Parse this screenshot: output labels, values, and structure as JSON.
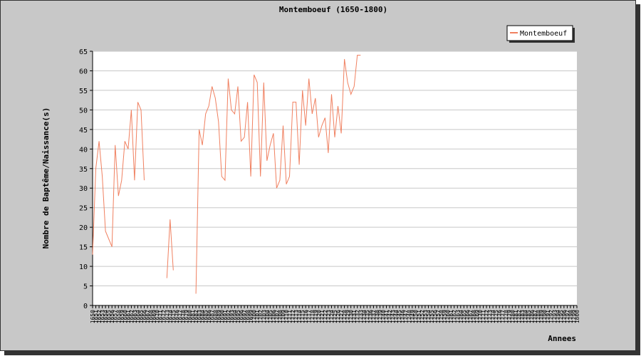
{
  "chart_data": {
    "type": "line",
    "title": "Montemboeuf (1650-1800)",
    "xlabel": "Annees",
    "ylabel": "Nombre de Baptême/Naissance(s)",
    "xlim": [
      1650,
      1800
    ],
    "ylim": [
      0,
      65
    ],
    "yticks": [
      0,
      5,
      10,
      15,
      20,
      25,
      30,
      35,
      40,
      45,
      50,
      55,
      60,
      65
    ],
    "grid": true,
    "legend_position": "top-right",
    "colors": {
      "series": "#f08060",
      "plot_bg": "#ffffff",
      "frame_bg": "#c8c8c8",
      "grid": "#c8c8c8"
    },
    "series": [
      {
        "name": "Montemboeuf",
        "points": [
          [
            1650,
            13
          ],
          [
            1651,
            35
          ],
          [
            1652,
            42
          ],
          [
            1653,
            33
          ],
          [
            1654,
            19
          ],
          [
            1656,
            15
          ],
          [
            1657,
            41
          ],
          [
            1658,
            28
          ],
          [
            1659,
            32
          ],
          [
            1660,
            42
          ],
          [
            1661,
            40
          ],
          [
            1662,
            50
          ],
          [
            1663,
            32
          ],
          [
            1664,
            52
          ],
          [
            1665,
            50
          ],
          [
            1666,
            32
          ],
          null,
          [
            1673,
            7
          ],
          [
            1674,
            22
          ],
          [
            1675,
            9
          ],
          null,
          [
            1682,
            3
          ],
          [
            1683,
            45
          ],
          [
            1684,
            41
          ],
          [
            1685,
            49
          ],
          [
            1686,
            51
          ],
          [
            1687,
            56
          ],
          [
            1688,
            53
          ],
          [
            1689,
            47
          ],
          [
            1690,
            33
          ],
          [
            1691,
            32
          ],
          [
            1692,
            58
          ],
          [
            1693,
            50
          ],
          [
            1694,
            49
          ],
          [
            1695,
            56
          ],
          [
            1696,
            42
          ],
          [
            1697,
            43
          ],
          [
            1698,
            52
          ],
          [
            1699,
            33
          ],
          [
            1700,
            59
          ],
          [
            1701,
            57
          ],
          [
            1702,
            33
          ],
          [
            1703,
            57
          ],
          [
            1704,
            37
          ],
          [
            1705,
            41
          ],
          [
            1706,
            44
          ],
          [
            1707,
            30
          ],
          [
            1708,
            32
          ],
          [
            1709,
            46
          ],
          [
            1710,
            31
          ],
          [
            1711,
            33
          ],
          [
            1712,
            52
          ],
          [
            1713,
            52
          ],
          [
            1714,
            36
          ],
          [
            1715,
            55
          ],
          [
            1716,
            46
          ],
          [
            1717,
            58
          ],
          [
            1718,
            49
          ],
          [
            1719,
            53
          ],
          [
            1720,
            43
          ],
          [
            1721,
            46
          ],
          [
            1722,
            48
          ],
          [
            1723,
            39
          ],
          [
            1724,
            54
          ],
          [
            1725,
            43
          ],
          [
            1726,
            51
          ],
          [
            1727,
            44
          ],
          [
            1728,
            63
          ],
          [
            1729,
            57
          ],
          [
            1730,
            54
          ],
          [
            1731,
            56
          ],
          [
            1732,
            64
          ],
          [
            1733,
            64
          ]
        ]
      }
    ]
  }
}
